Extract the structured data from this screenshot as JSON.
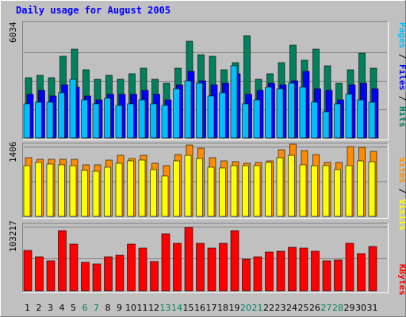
{
  "chart_data": [
    {
      "type": "bar",
      "title": "Daily usage for August 2005",
      "categories": [
        "1",
        "2",
        "3",
        "4",
        "5",
        "6",
        "7",
        "8",
        "9",
        "10",
        "11",
        "12",
        "13",
        "14",
        "15",
        "16",
        "17",
        "18",
        "19",
        "20",
        "21",
        "22",
        "23",
        "24",
        "25",
        "26",
        "27",
        "28",
        "29",
        "30",
        "31"
      ],
      "weekend_days": [
        "6",
        "7",
        "13",
        "14",
        "20",
        "21",
        "27",
        "28"
      ],
      "y_max_label": "6034",
      "ylim": [
        0,
        6034
      ],
      "grid": true,
      "series": [
        {
          "name": "Hits",
          "color": "#00805c",
          "values": [
            3200,
            3300,
            3200,
            4300,
            4700,
            3600,
            3100,
            3300,
            3100,
            3400,
            3700,
            3100,
            2900,
            3700,
            5100,
            4400,
            4300,
            3600,
            4000,
            5400,
            3100,
            3400,
            4000,
            4900,
            4100,
            4700,
            3800,
            2900,
            3600,
            4500,
            3700
          ]
        },
        {
          "name": "Files",
          "color": "#0000ff",
          "values": [
            2300,
            2500,
            2200,
            2800,
            2700,
            2200,
            2000,
            2300,
            2300,
            2300,
            2500,
            2300,
            2000,
            2800,
            3500,
            3000,
            2800,
            2900,
            3400,
            2300,
            2500,
            2900,
            2800,
            3000,
            3500,
            2600,
            2500,
            2000,
            2800,
            2900,
            2600
          ]
        },
        {
          "name": "Pages",
          "color": "#00bfff",
          "values": [
            1800,
            1900,
            1900,
            2400,
            3100,
            2000,
            1800,
            2100,
            1700,
            1800,
            2000,
            1800,
            1700,
            2600,
            3000,
            2900,
            2200,
            2400,
            3800,
            1800,
            2000,
            2700,
            2600,
            2900,
            2700,
            1900,
            1400,
            1800,
            2300,
            2000,
            1900
          ]
        }
      ]
    },
    {
      "type": "bar",
      "y_max_label": "1406",
      "ylim": [
        0,
        1406
      ],
      "grid": true,
      "categories": [
        "1",
        "2",
        "3",
        "4",
        "5",
        "6",
        "7",
        "8",
        "9",
        "10",
        "11",
        "12",
        "13",
        "14",
        "15",
        "16",
        "17",
        "18",
        "19",
        "20",
        "21",
        "22",
        "23",
        "24",
        "25",
        "26",
        "27",
        "28",
        "29",
        "30",
        "31"
      ],
      "series": [
        {
          "name": "Visits",
          "color": "#ffff00",
          "values": [
            1000,
            1060,
            1030,
            1020,
            1000,
            900,
            890,
            970,
            1050,
            1100,
            1110,
            920,
            800,
            1100,
            1200,
            1140,
            970,
            960,
            1000,
            1000,
            1000,
            1060,
            1160,
            1200,
            1020,
            1000,
            1000,
            920,
            1000,
            1100,
            1080
          ]
        },
        {
          "name": "Sites",
          "color": "#ff8c00",
          "values": [
            1150,
            1120,
            1130,
            1120,
            1120,
            1010,
            1010,
            1110,
            1210,
            1140,
            1200,
            1040,
            1000,
            1220,
            1400,
            1340,
            1150,
            1090,
            1080,
            1050,
            1060,
            1090,
            1320,
            1420,
            1290,
            1220,
            1060,
            1060,
            1370,
            1360,
            1280
          ]
        }
      ]
    },
    {
      "type": "bar",
      "y_max_label": "103217",
      "ylim": [
        0,
        103217
      ],
      "grid": true,
      "categories": [
        "1",
        "2",
        "3",
        "4",
        "5",
        "6",
        "7",
        "8",
        "9",
        "10",
        "11",
        "12",
        "13",
        "14",
        "15",
        "16",
        "17",
        "18",
        "19",
        "20",
        "21",
        "22",
        "23",
        "24",
        "25",
        "26",
        "27",
        "28",
        "29",
        "30",
        "31"
      ],
      "series": [
        {
          "name": "KBytes",
          "color": "#ff0000",
          "values": [
            64000,
            54000,
            47000,
            95000,
            73000,
            45000,
            42000,
            54000,
            56000,
            73000,
            67000,
            46000,
            89000,
            74000,
            100000,
            74000,
            67000,
            74000,
            95000,
            50000,
            54000,
            61000,
            62000,
            69000,
            67000,
            62000,
            47000,
            48000,
            74000,
            59000,
            70000
          ]
        }
      ]
    }
  ],
  "legend": {
    "top": [
      {
        "text": "Pages",
        "color": "#00bfff"
      },
      {
        "text": " / ",
        "color": "#000000"
      },
      {
        "text": "Files",
        "color": "#0000ff"
      },
      {
        "text": " / ",
        "color": "#000000"
      },
      {
        "text": "Hits",
        "color": "#00805c"
      }
    ],
    "middle": [
      {
        "text": "Sites",
        "color": "#ff8c00"
      },
      {
        "text": " / ",
        "color": "#000000"
      },
      {
        "text": "Visits",
        "color": "#ffff00"
      }
    ],
    "bottom": [
      {
        "text": "KBytes",
        "color": "#ff0000"
      }
    ]
  },
  "colors": {
    "background": "#c0c0c0",
    "panel": "#c0c0c0",
    "title": "#0000ff",
    "weekend_label": "#00805c",
    "weekday_label": "#000000"
  }
}
